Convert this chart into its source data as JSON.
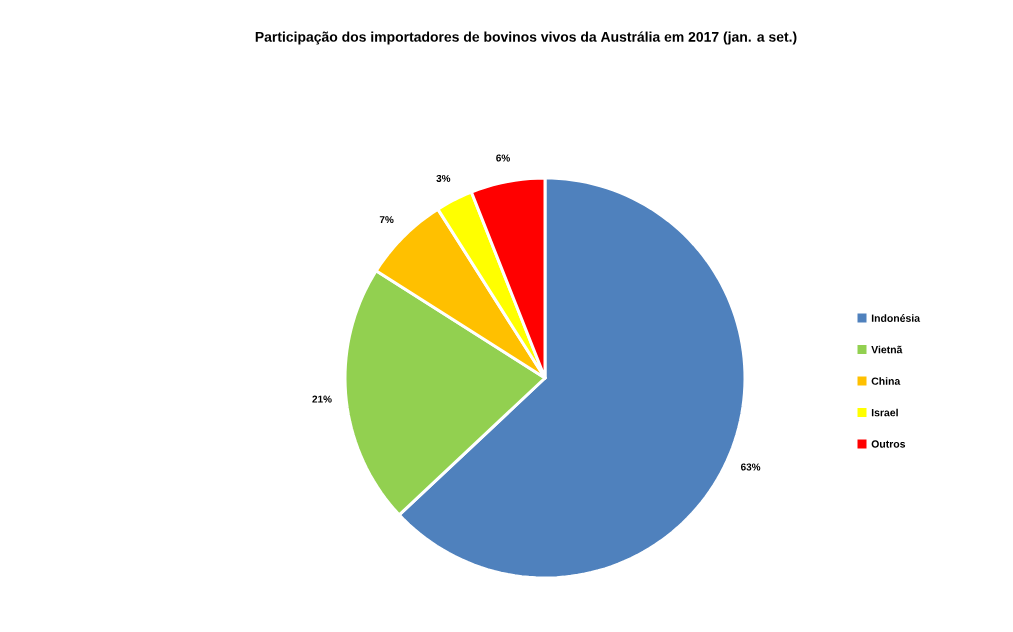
{
  "chart_data": {
    "type": "pie",
    "title": "Participação dos importadores de bovinos vivos da Austrália em 2017 (jan. a set.)",
    "categories": [
      "Indonésia",
      "Vietnã",
      "China",
      "Israel",
      "Outros"
    ],
    "values": [
      63,
      21,
      7,
      3,
      6
    ],
    "value_labels": [
      "63%",
      "21%",
      "7%",
      "3%",
      "6%"
    ],
    "colors": [
      "#4f81bd",
      "#92d050",
      "#ffc000",
      "#ffff00",
      "#ff0000"
    ],
    "legend": "right"
  }
}
